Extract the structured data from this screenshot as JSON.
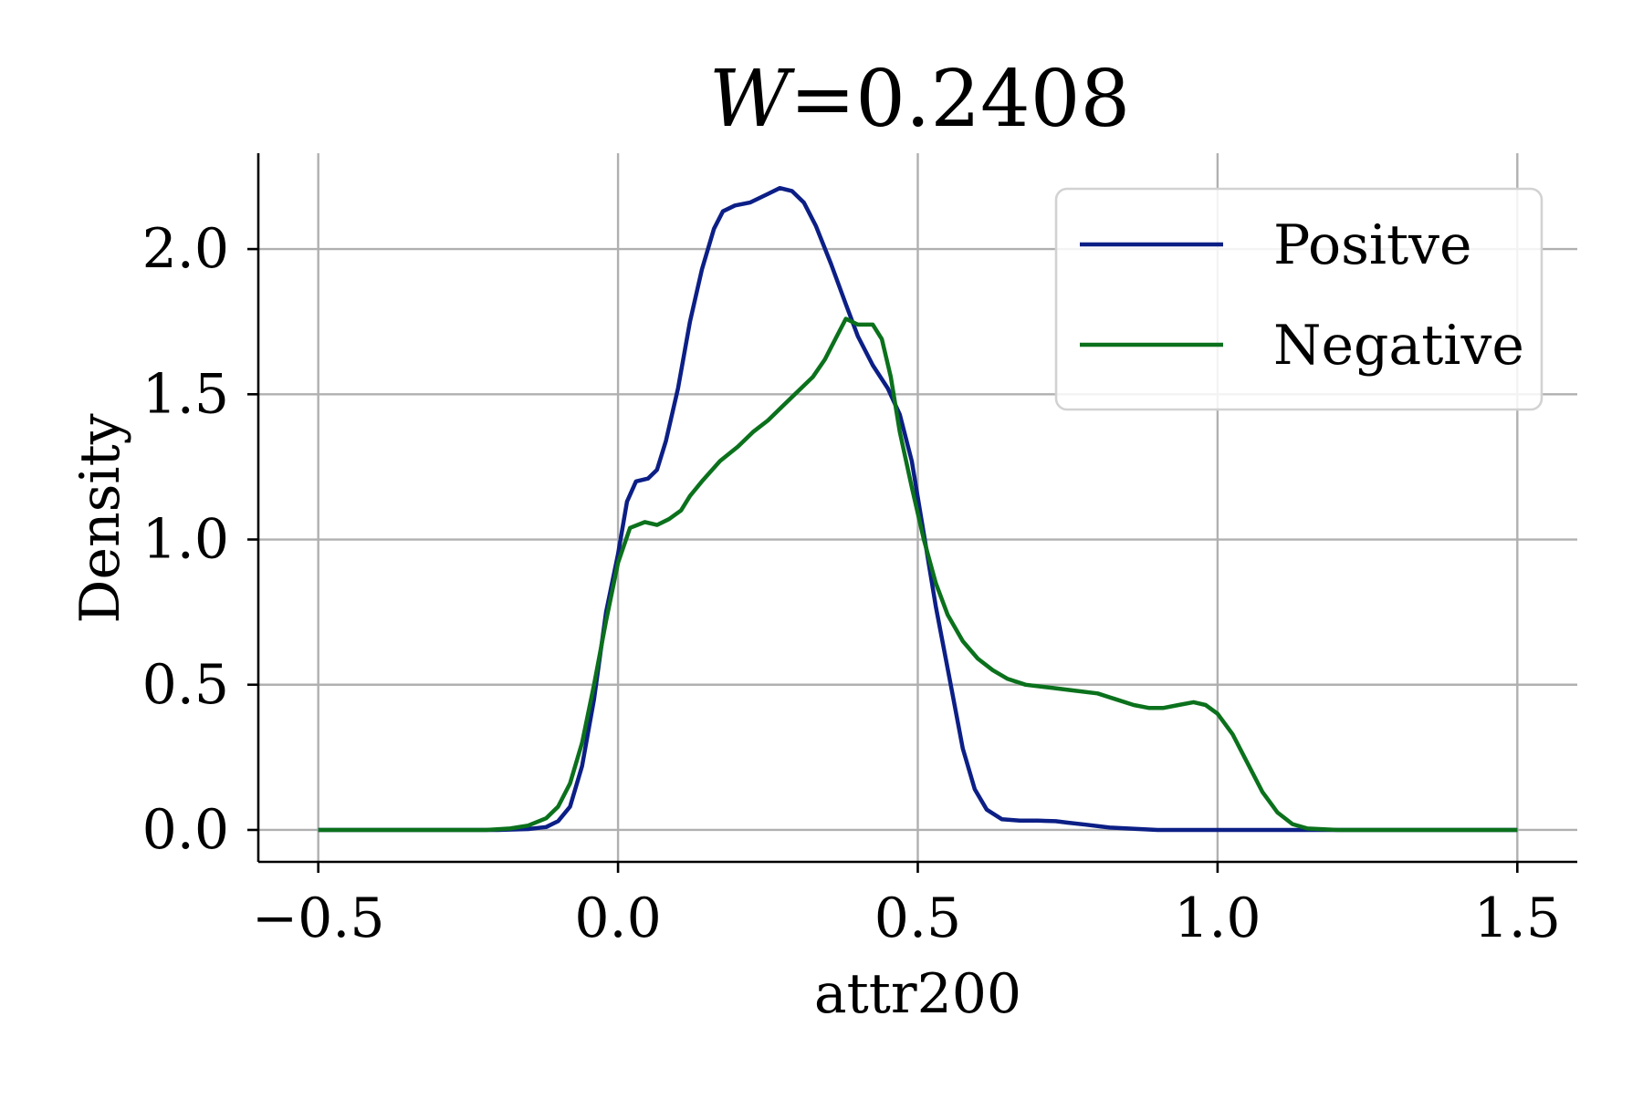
{
  "chart_data": {
    "type": "line",
    "title": "W =0.2408",
    "title_var": "W",
    "title_rest": "=0.2408",
    "xlabel": "attr200",
    "ylabel": "Density",
    "xlim": [
      -0.6,
      1.6
    ],
    "ylim": [
      -0.11,
      2.33
    ],
    "xticks": [
      -0.5,
      0.0,
      0.5,
      1.0,
      1.5
    ],
    "xtick_labels": [
      "−0.5",
      "0.0",
      "0.5",
      "1.0",
      "1.5"
    ],
    "yticks": [
      0.0,
      0.5,
      1.0,
      1.5,
      2.0
    ],
    "ytick_labels": [
      "0.0",
      "0.5",
      "1.0",
      "1.5",
      "2.0"
    ],
    "grid": true,
    "legend_position": "top-right",
    "series": [
      {
        "name": "Positve",
        "color": "#0c1f86",
        "x": [
          -0.5,
          -0.2,
          -0.15,
          -0.12,
          -0.1,
          -0.08,
          -0.06,
          -0.04,
          -0.02,
          0.0,
          0.015,
          0.03,
          0.05,
          0.065,
          0.08,
          0.1,
          0.12,
          0.14,
          0.16,
          0.175,
          0.195,
          0.22,
          0.25,
          0.27,
          0.29,
          0.31,
          0.33,
          0.355,
          0.38,
          0.4,
          0.425,
          0.45,
          0.47,
          0.49,
          0.51,
          0.53,
          0.555,
          0.575,
          0.595,
          0.615,
          0.64,
          0.67,
          0.7,
          0.73,
          0.75,
          0.78,
          0.82,
          0.9,
          1.2,
          1.5
        ],
        "y": [
          0.0,
          0.0,
          0.003,
          0.01,
          0.03,
          0.08,
          0.22,
          0.45,
          0.75,
          0.95,
          1.13,
          1.2,
          1.21,
          1.24,
          1.34,
          1.52,
          1.75,
          1.93,
          2.07,
          2.13,
          2.15,
          2.16,
          2.19,
          2.21,
          2.2,
          2.16,
          2.08,
          1.95,
          1.81,
          1.7,
          1.6,
          1.52,
          1.43,
          1.27,
          1.02,
          0.77,
          0.5,
          0.28,
          0.14,
          0.07,
          0.037,
          0.032,
          0.032,
          0.03,
          0.025,
          0.018,
          0.008,
          0.0,
          0.0,
          0.0
        ]
      },
      {
        "name": "Negative",
        "color": "#0b711c",
        "x": [
          -0.5,
          -0.22,
          -0.18,
          -0.15,
          -0.12,
          -0.1,
          -0.08,
          -0.06,
          -0.04,
          -0.02,
          0.0,
          0.02,
          0.045,
          0.065,
          0.085,
          0.105,
          0.12,
          0.14,
          0.17,
          0.2,
          0.225,
          0.25,
          0.275,
          0.3,
          0.325,
          0.345,
          0.365,
          0.38,
          0.4,
          0.425,
          0.44,
          0.455,
          0.47,
          0.49,
          0.51,
          0.53,
          0.55,
          0.575,
          0.6,
          0.625,
          0.65,
          0.68,
          0.72,
          0.76,
          0.8,
          0.83,
          0.86,
          0.885,
          0.91,
          0.935,
          0.96,
          0.98,
          1.0,
          1.025,
          1.05,
          1.075,
          1.1,
          1.125,
          1.15,
          1.2,
          1.5
        ],
        "y": [
          0.0,
          0.0,
          0.005,
          0.015,
          0.04,
          0.08,
          0.16,
          0.3,
          0.5,
          0.72,
          0.92,
          1.04,
          1.06,
          1.05,
          1.07,
          1.1,
          1.15,
          1.2,
          1.27,
          1.32,
          1.37,
          1.41,
          1.46,
          1.51,
          1.56,
          1.62,
          1.7,
          1.76,
          1.74,
          1.74,
          1.69,
          1.56,
          1.37,
          1.18,
          1.0,
          0.85,
          0.74,
          0.65,
          0.59,
          0.55,
          0.52,
          0.5,
          0.49,
          0.48,
          0.47,
          0.45,
          0.43,
          0.42,
          0.42,
          0.43,
          0.44,
          0.43,
          0.4,
          0.33,
          0.23,
          0.13,
          0.06,
          0.02,
          0.005,
          0.0,
          0.0
        ]
      }
    ]
  }
}
